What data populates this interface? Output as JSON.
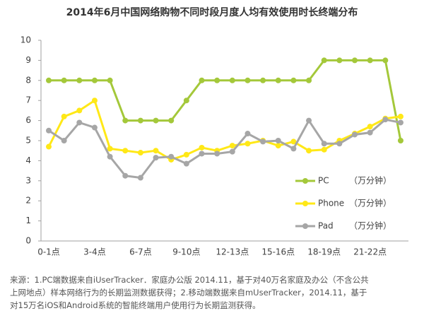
{
  "chart_data": {
    "type": "line",
    "title": "2014年6月中国网络购物不同时段月度人均有效使用时长终端分布",
    "categories": [
      "0-1点",
      null,
      null,
      "3-4点",
      null,
      null,
      "6-7点",
      null,
      null,
      "9-10点",
      null,
      null,
      "12-13点",
      null,
      null,
      "15-16点",
      null,
      null,
      "18-19点",
      null,
      null,
      "21-22点",
      null,
      null
    ],
    "series": [
      {
        "name": "PC",
        "color": "#a4c83a",
        "values": [
          8,
          8,
          8,
          8,
          8,
          6,
          6,
          6,
          6,
          7,
          8,
          8,
          8,
          8,
          8,
          8,
          8,
          8,
          9,
          9,
          9,
          9,
          9,
          5
        ]
      },
      {
        "name": "Phone",
        "color": "#ffe817",
        "values": [
          4.7,
          6.2,
          6.5,
          7.0,
          4.6,
          4.5,
          4.4,
          4.5,
          4.05,
          4.3,
          4.65,
          4.5,
          4.75,
          4.85,
          5.0,
          4.75,
          4.95,
          4.5,
          4.55,
          5.0,
          5.35,
          5.7,
          6.1,
          6.2
        ]
      },
      {
        "name": "Pad",
        "color": "#a6a6a6",
        "values": [
          5.5,
          5.0,
          5.9,
          5.65,
          4.2,
          3.25,
          3.15,
          4.15,
          4.2,
          3.85,
          4.35,
          4.35,
          4.45,
          5.35,
          4.95,
          5.0,
          4.6,
          6.0,
          4.85,
          4.85,
          5.3,
          5.4,
          6.05,
          5.9
        ]
      }
    ],
    "legend_unit": "（万分钟）",
    "ylim": [
      0,
      10
    ],
    "yticks": [
      0,
      1,
      2,
      3,
      4,
      5,
      6,
      7,
      8,
      9,
      10
    ],
    "grid": false,
    "notes": [
      "来源：1.PC端数据来自iUserTracker．家庭办公版 2014.11，基于对40万名家庭及办公（不含公共",
      "上网地点）样本网络行为的长期监测数据获得；2.移动端数据来自mUserTracker，2014.11，基于",
      "对15万名iOS和Android系统的智能终端用户使用行为长期监测获得。"
    ]
  }
}
